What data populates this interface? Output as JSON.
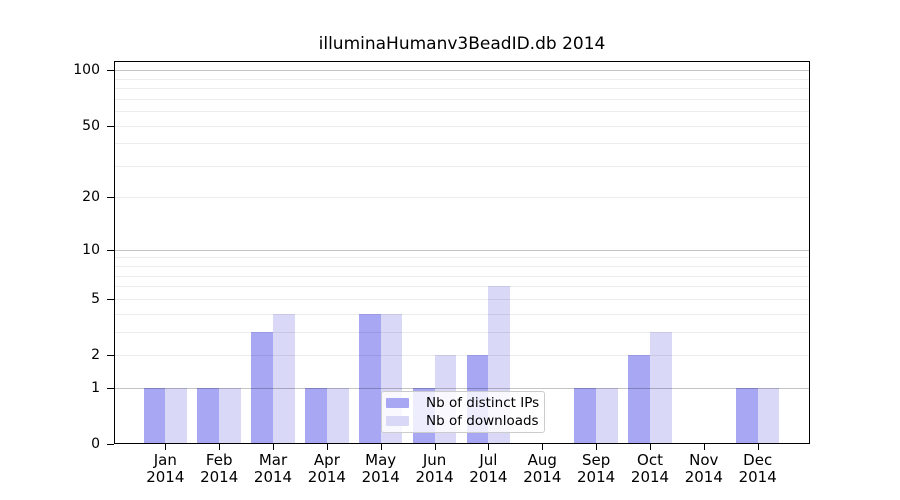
{
  "chart_data": {
    "type": "bar",
    "title": "illuminaHumanv3BeadID.db 2014",
    "categories": [
      "Jan",
      "Feb",
      "Mar",
      "Apr",
      "May",
      "Jun",
      "Jul",
      "Aug",
      "Sep",
      "Oct",
      "Nov",
      "Dec"
    ],
    "year": "2014",
    "series": [
      {
        "name": "Nb of distinct IPs",
        "color": "#a7a7f4",
        "values": [
          1,
          1,
          3,
          1,
          4,
          1,
          2,
          0,
          1,
          2,
          0,
          1
        ]
      },
      {
        "name": "Nb of downloads",
        "color": "#d9d9f7",
        "values": [
          1,
          1,
          4,
          1,
          4,
          2,
          6,
          0,
          1,
          3,
          0,
          1
        ]
      }
    ],
    "xlabel": "",
    "ylabel": "",
    "yscale": "log1p",
    "ylim": [
      0,
      113
    ],
    "yticks": [
      0,
      1,
      2,
      5,
      10,
      20,
      50,
      100
    ],
    "grid_major": [
      1,
      10,
      100
    ],
    "grid_minor": [
      2,
      3,
      4,
      5,
      6,
      7,
      8,
      9,
      20,
      30,
      40,
      50,
      60,
      70,
      80,
      90
    ],
    "grid": "on",
    "legend_position": "bottom-center",
    "colors": {
      "axis": "#000000",
      "grid_major": "#c4c4c4",
      "grid_minor": "#ececec",
      "background": "#ffffff"
    }
  }
}
